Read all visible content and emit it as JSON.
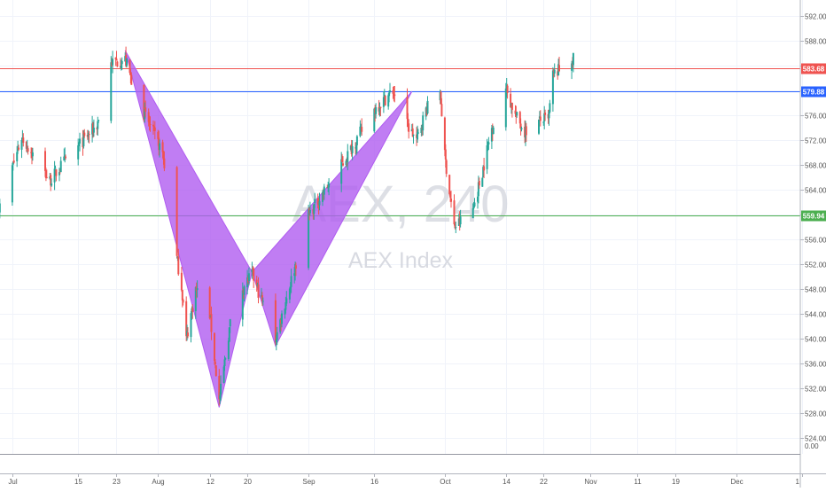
{
  "watermark": {
    "symbol": "AEX, 240",
    "name": "AEX Index"
  },
  "chart_data": {
    "type": "candlestick",
    "y_ticks": [
      "592.00",
      "588.00",
      "584.00",
      "580.00",
      "576.00",
      "572.00",
      "568.00",
      "564.00",
      "560.00",
      "556.00",
      "552.00",
      "548.00",
      "544.00",
      "540.00",
      "536.00",
      "532.00",
      "528.00",
      "524.00"
    ],
    "y_range": [
      522.5,
      593.2
    ],
    "x_ticks": [
      {
        "label": "Jul",
        "date": "2019-07-01"
      },
      {
        "label": "15",
        "date": "2019-07-15"
      },
      {
        "label": "23",
        "date": "2019-07-23"
      },
      {
        "label": "Aug",
        "date": "2019-08-01"
      },
      {
        "label": "12",
        "date": "2019-08-12"
      },
      {
        "label": "20",
        "date": "2019-08-20"
      },
      {
        "label": "Sep",
        "date": "2019-09-02"
      },
      {
        "label": "16",
        "date": "2019-09-16"
      },
      {
        "label": "Oct",
        "date": "2019-10-01"
      },
      {
        "label": "14",
        "date": "2019-10-14"
      },
      {
        "label": "22",
        "date": "2019-10-22"
      },
      {
        "label": "Nov",
        "date": "2019-11-01"
      },
      {
        "label": "11",
        "date": "2019-11-11"
      },
      {
        "label": "19",
        "date": "2019-11-19"
      },
      {
        "label": "Dec",
        "date": "2019-12-02"
      },
      {
        "label": "1",
        "date": "2019-12-16"
      }
    ],
    "volume_label": "0.00",
    "horizontal_lines": [
      {
        "price": 583.68,
        "label": "583.68",
        "color": "#ef5350"
      },
      {
        "price": 579.88,
        "label": "579.88",
        "color": "#2962ff"
      },
      {
        "price": 559.94,
        "label": "559.94",
        "color": "#4caf50"
      }
    ],
    "harmonic_pattern": {
      "color": "#b05cf0",
      "points": [
        {
          "date": "2019-07-25",
          "price": 586.5
        },
        {
          "date": "2019-08-14",
          "price": 529.0
        },
        {
          "date": "2019-08-21",
          "price": 550.8
        },
        {
          "date": "2019-08-26",
          "price": 538.9
        },
        {
          "date": "2019-09-24",
          "price": 579.9
        }
      ]
    },
    "colors": {
      "up": "#26a69a",
      "down": "#ef5350",
      "grid": "#f0f3fa",
      "axis_text": "#555555"
    },
    "pivots": [
      {
        "date": "2019-06-28",
        "price": 560.5
      },
      {
        "date": "2019-07-03",
        "price": 572.5
      },
      {
        "date": "2019-07-09",
        "price": 565.5
      },
      {
        "date": "2019-07-12",
        "price": 568.5
      },
      {
        "date": "2019-07-19",
        "price": 574.5
      },
      {
        "date": "2019-07-22",
        "price": 584.5
      },
      {
        "date": "2019-07-25",
        "price": 585.0
      },
      {
        "date": "2019-07-28",
        "price": 578.0
      },
      {
        "date": "2019-08-02",
        "price": 570.0
      },
      {
        "date": "2019-08-05",
        "price": 553.0
      },
      {
        "date": "2019-08-06",
        "price": 548.5
      },
      {
        "date": "2019-08-07",
        "price": 540.0
      },
      {
        "date": "2019-08-09",
        "price": 548.0
      },
      {
        "date": "2019-08-12",
        "price": 544.0
      },
      {
        "date": "2019-08-14",
        "price": 530.0
      },
      {
        "date": "2019-08-17",
        "price": 546.0
      },
      {
        "date": "2019-08-21",
        "price": 550.5
      },
      {
        "date": "2019-08-26",
        "price": 540.0
      },
      {
        "date": "2019-09-02",
        "price": 560.0
      },
      {
        "date": "2019-09-09",
        "price": 568.0
      },
      {
        "date": "2019-09-16",
        "price": 577.0
      },
      {
        "date": "2019-09-20",
        "price": 580.0
      },
      {
        "date": "2019-09-23",
        "price": 574.5
      },
      {
        "date": "2019-09-25",
        "price": 572.0
      },
      {
        "date": "2019-09-27",
        "price": 577.0
      },
      {
        "date": "2019-09-30",
        "price": 580.0
      },
      {
        "date": "2019-10-01",
        "price": 569.5
      },
      {
        "date": "2019-10-03",
        "price": 558.0
      },
      {
        "date": "2019-10-07",
        "price": 561.0
      },
      {
        "date": "2019-10-09",
        "price": 567.0
      },
      {
        "date": "2019-10-11",
        "price": 574.0
      },
      {
        "date": "2019-10-14",
        "price": 580.5
      },
      {
        "date": "2019-10-16",
        "price": 576.0
      },
      {
        "date": "2019-10-18",
        "price": 573.5
      },
      {
        "date": "2019-10-22",
        "price": 575.5
      },
      {
        "date": "2019-10-23",
        "price": 575.0
      },
      {
        "date": "2019-10-24",
        "price": 582.5
      },
      {
        "date": "2019-10-28",
        "price": 585.0
      }
    ]
  }
}
